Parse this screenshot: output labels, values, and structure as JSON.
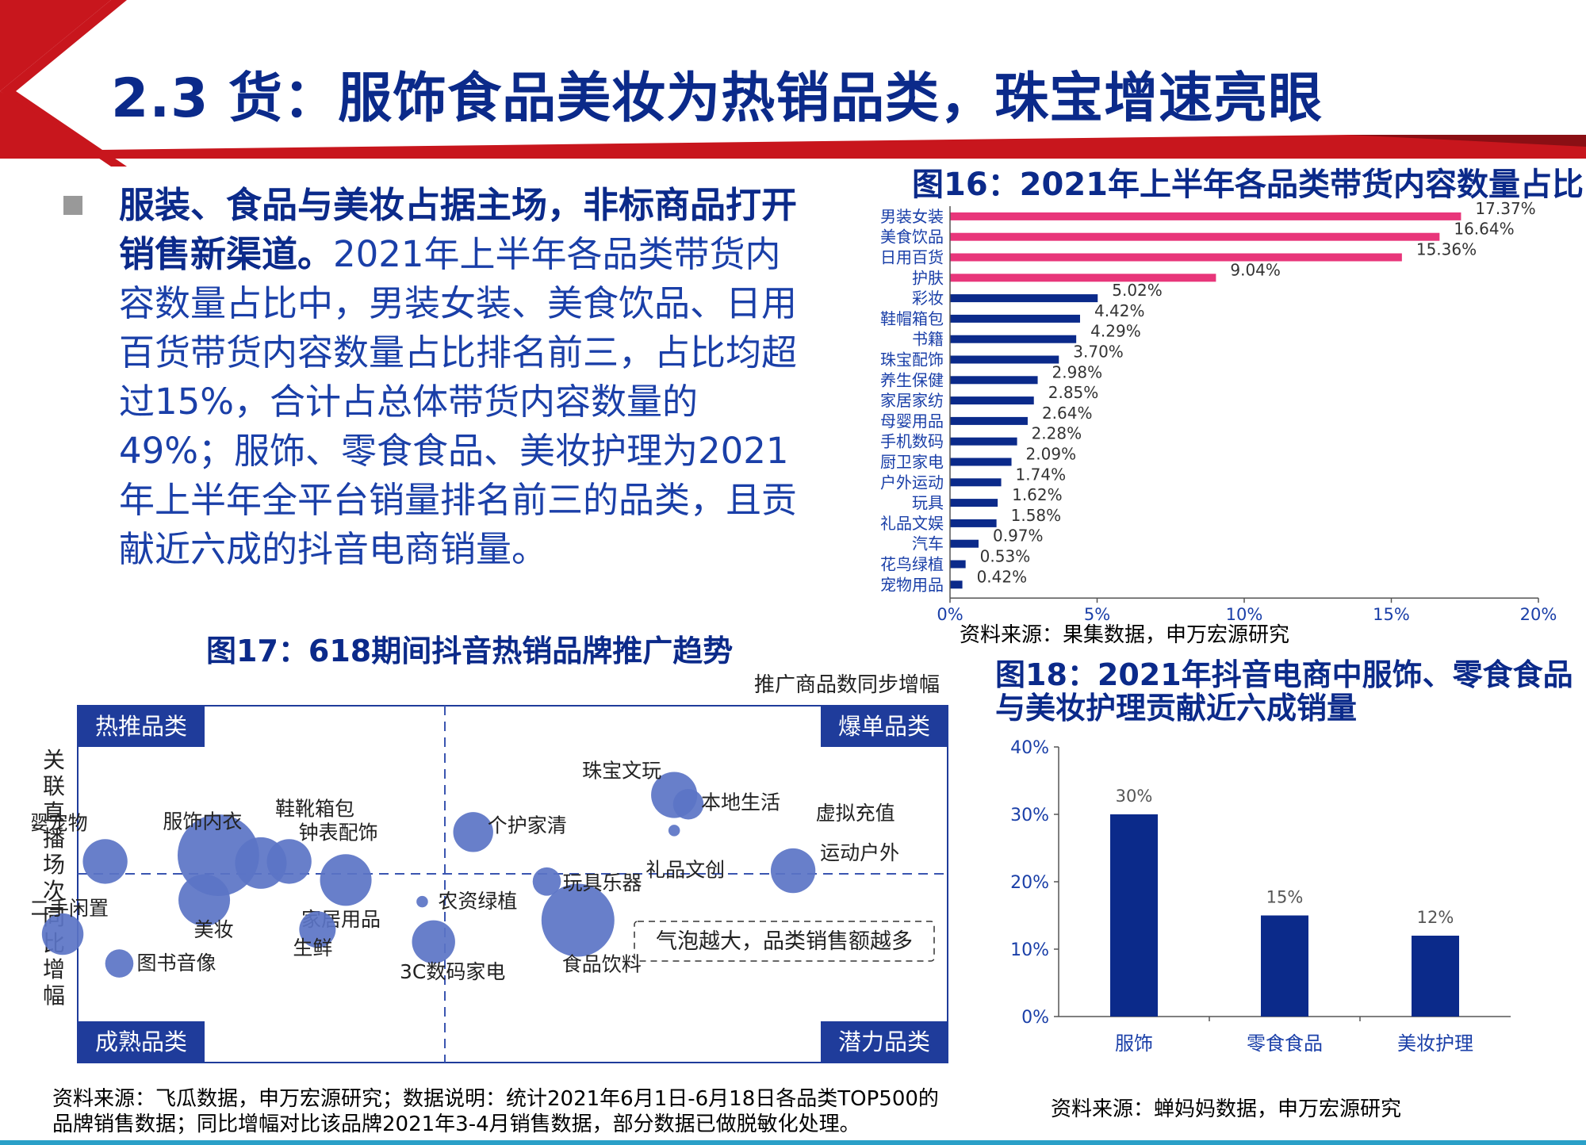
{
  "header": {
    "title": "2.3 货：服饰食品美妆为热销品类，珠宝增速亮眼",
    "colors": {
      "red": "#c8161d",
      "navy": "#0b2a8a"
    }
  },
  "body": {
    "bold_text": "服装、食品与美妆占据主场，非标商品打开销售新渠道。",
    "text": "2021年上半年各品类带货内容数量占比中，男装女装、美食饮品、日用百货带货内容数量占比排名前三，占比均超过15%，合计占总体带货内容数量的49%；服饰、零食食品、美妆护理为2021年上半年全平台销量排名前三的品类，且贡献近六成的抖音电商销量。"
  },
  "fig16": {
    "title": "图16：2021年上半年各品类带货内容数量占比",
    "source": "资料来源：果集数据，申万宏源研究"
  },
  "fig17": {
    "title": "图17：618期间抖音热销品牌推广趋势",
    "source_line1": "资料来源：飞瓜数据，申万宏源研究；数据说明：统计2021年6月1日-6月18日各品类TOP500的",
    "source_line2": "品牌销售数据；同比增幅对比该品牌2021年3-4月销售数据，部分数据已做脱敏化处理。"
  },
  "fig18": {
    "title_line1": "图18：2021年抖音电商中服饰、零食食品",
    "title_line2": "与美妆护理贡献近六成销量",
    "source": "资料来源：蝉妈妈数据，申万宏源研究"
  },
  "chart_data": [
    {
      "type": "bar",
      "orientation": "horizontal",
      "title": "图16：2021年上半年各品类带货内容数量占比",
      "categories": [
        "男装女装",
        "美食饮品",
        "日用百货",
        "护肤",
        "彩妆",
        "鞋帽箱包",
        "书籍",
        "珠宝配饰",
        "养生保健",
        "家居家纺",
        "母婴用品",
        "手机数码",
        "厨卫家电",
        "户外运动",
        "玩具",
        "礼品文娱",
        "汽车",
        "花鸟绿植",
        "宠物用品"
      ],
      "values": [
        17.37,
        16.64,
        15.36,
        9.04,
        5.02,
        4.42,
        4.29,
        3.7,
        2.98,
        2.85,
        2.64,
        2.28,
        2.09,
        1.74,
        1.62,
        1.58,
        0.97,
        0.53,
        0.42
      ],
      "value_labels": [
        "17.37%",
        "16.64%",
        "15.36%",
        "9.04%",
        "5.02%",
        "4.42%",
        "4.29%",
        "3.70%",
        "2.98%",
        "2.85%",
        "2.64%",
        "2.28%",
        "2.09%",
        "1.74%",
        "1.62%",
        "1.58%",
        "0.97%",
        "0.53%",
        "0.42%"
      ],
      "highlight_count": 4,
      "colors": {
        "highlight": "#e8367a",
        "normal": "#0b2a8a"
      },
      "xlim": [
        0,
        20
      ],
      "xticks": [
        0,
        5,
        10,
        15,
        20
      ],
      "xtick_labels": [
        "0%",
        "5%",
        "10%",
        "15%",
        "20%"
      ]
    },
    {
      "type": "scatter",
      "title": "图17：618期间抖音热销品牌推广趋势",
      "xlabel": "推广商品数同步增幅",
      "ylabel": "关联直播场次同比增幅",
      "quadrant_labels": {
        "top_left": "热推品类",
        "top_right": "爆单品类",
        "bottom_left": "成熟品类",
        "bottom_right": "潜力品类"
      },
      "legend_note": "气泡越大，品类销售额越多",
      "colors": {
        "bubble": "#5b74c6",
        "quadrant": "#1f3c9b"
      },
      "points": [
        {
          "label": "服饰内衣",
          "x": -0.8,
          "y": 0.12,
          "size": 5.0
        },
        {
          "label": "母婴宠物",
          "x": -1.2,
          "y": 0.08,
          "size": 1.5
        },
        {
          "label": "鞋靴箱包",
          "x": -0.65,
          "y": 0.07,
          "size": 2.0
        },
        {
          "label": "钟表配饰",
          "x": -0.55,
          "y": 0.08,
          "size": 1.5
        },
        {
          "label": "家居用品",
          "x": -0.35,
          "y": -0.04,
          "size": 2.0
        },
        {
          "label": "美妆",
          "x": -0.85,
          "y": -0.17,
          "size": 2.0
        },
        {
          "label": "二手闲置",
          "x": -1.35,
          "y": -0.39,
          "size": 1.3
        },
        {
          "label": "生鲜",
          "x": -0.45,
          "y": -0.36,
          "size": 1.0
        },
        {
          "label": "图书音像",
          "x": -1.15,
          "y": -0.58,
          "size": 0.6
        },
        {
          "label": "农资绿植",
          "x": -0.08,
          "y": -0.18,
          "size": 0.1
        },
        {
          "label": "3C数码家电",
          "x": -0.04,
          "y": -0.44,
          "size": 1.4
        },
        {
          "label": "食品饮料",
          "x": 0.47,
          "y": -0.3,
          "size": 4.0
        },
        {
          "label": "玩具乐器",
          "x": 0.36,
          "y": -0.05,
          "size": 0.6
        },
        {
          "label": "个护家清",
          "x": 0.1,
          "y": 0.27,
          "size": 1.2
        },
        {
          "label": "珠宝文玩",
          "x": 0.81,
          "y": 0.51,
          "size": 1.6
        },
        {
          "label": "本地生活",
          "x": 0.86,
          "y": 0.45,
          "size": 0.7
        },
        {
          "label": "礼品文创",
          "x": 0.81,
          "y": 0.28,
          "size": 0.1
        },
        {
          "label": "运动户外",
          "x": 1.23,
          "y": 0.02,
          "size": 1.5
        },
        {
          "label": "虚拟充值",
          "x": 1.45,
          "y": 0.35,
          "size": 0
        }
      ]
    },
    {
      "type": "bar",
      "title": "图18：2021年抖音电商中服饰、零食食品与美妆护理贡献近六成销量",
      "categories": [
        "服饰",
        "零食食品",
        "美妆护理"
      ],
      "values": [
        30,
        15,
        12
      ],
      "value_labels": [
        "30%",
        "15%",
        "12%"
      ],
      "ylim": [
        0,
        40
      ],
      "yticks": [
        0,
        10,
        20,
        30,
        40
      ],
      "ytick_labels": [
        "0%",
        "10%",
        "20%",
        "30%",
        "40%"
      ],
      "colors": {
        "bar": "#0b2a8a"
      }
    }
  ]
}
